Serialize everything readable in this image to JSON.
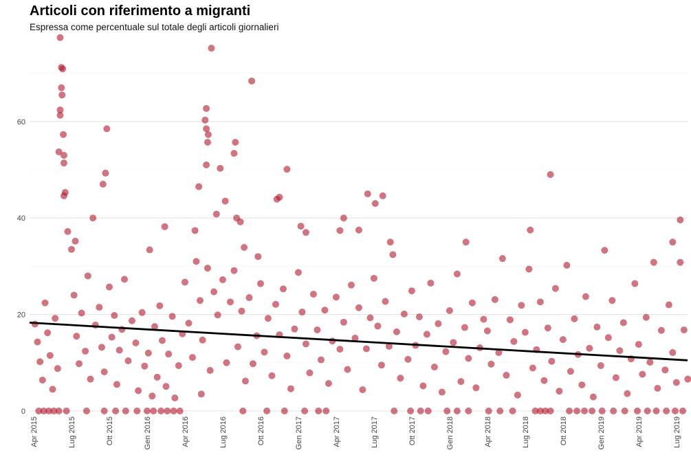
{
  "chart_data": {
    "type": "scatter",
    "title": "Articoli con riferimento a migranti",
    "subtitle": "Espressa come percentuale sul totale degli articoli giornalieri",
    "xlabel": "",
    "ylabel": "",
    "x_units": "months since Apr 2015",
    "xlim": [
      0,
      52
    ],
    "ylim": [
      0,
      78
    ],
    "y_ticks": [
      0,
      20,
      40,
      60
    ],
    "x_ticks": [
      {
        "m": 0,
        "label": "Apr 2015"
      },
      {
        "m": 3,
        "label": "Lug 2015"
      },
      {
        "m": 6,
        "label": "Ott 2015"
      },
      {
        "m": 9,
        "label": "Gen 2016"
      },
      {
        "m": 12,
        "label": "Apr 2016"
      },
      {
        "m": 15,
        "label": "Lug 2016"
      },
      {
        "m": 18,
        "label": "Ott 2016"
      },
      {
        "m": 21,
        "label": "Gen 2017"
      },
      {
        "m": 24,
        "label": "Apr 2017"
      },
      {
        "m": 27,
        "label": "Lug 2017"
      },
      {
        "m": 30,
        "label": "Ott 2017"
      },
      {
        "m": 33,
        "label": "Gen 2018"
      },
      {
        "m": 36,
        "label": "Apr 2018"
      },
      {
        "m": 39,
        "label": "Lug 2018"
      },
      {
        "m": 42,
        "label": "Ott 2018"
      },
      {
        "m": 45,
        "label": "Gen 2019"
      },
      {
        "m": 48,
        "label": "Apr 2019"
      },
      {
        "m": 51,
        "label": "Lug 2019"
      }
    ],
    "grid": true,
    "point_color": "#b2182b",
    "trend_color": "#000000",
    "trend": {
      "x": [
        0,
        52
      ],
      "y": [
        18.3,
        10.5
      ]
    },
    "points": [
      [
        2.1,
        77.4
      ],
      [
        2.2,
        71.2
      ],
      [
        2.3,
        70.9
      ],
      [
        2.2,
        67
      ],
      [
        2.25,
        65.5
      ],
      [
        2.1,
        62.4
      ],
      [
        2.1,
        61.3
      ],
      [
        2.35,
        57.3
      ],
      [
        2.4,
        53
      ],
      [
        2.0,
        53.7
      ],
      [
        2.4,
        51.4
      ],
      [
        2.5,
        45.3
      ],
      [
        2.4,
        44.6
      ],
      [
        5.8,
        58.5
      ],
      [
        5.7,
        49.3
      ],
      [
        5.5,
        47
      ],
      [
        14.1,
        75.2
      ],
      [
        13.7,
        62.7
      ],
      [
        13.6,
        60.3
      ],
      [
        13.7,
        58.5
      ],
      [
        13.85,
        57.3
      ],
      [
        13.8,
        55.7
      ],
      [
        13.7,
        51
      ],
      [
        16,
        55.7
      ],
      [
        15.9,
        53.4
      ],
      [
        17.3,
        68.4
      ],
      [
        14.8,
        50.3
      ],
      [
        20.1,
        50.1
      ],
      [
        19.5,
        44.3
      ],
      [
        19.3,
        43.9
      ],
      [
        26.5,
        45
      ],
      [
        27.7,
        44.6
      ],
      [
        27.1,
        43
      ],
      [
        41,
        49
      ],
      [
        51.3,
        39.6
      ],
      [
        50.7,
        35
      ],
      [
        51.3,
        30.8
      ],
      [
        4.7,
        40
      ],
      [
        10.4,
        38.2
      ],
      [
        24.6,
        40
      ],
      [
        13.1,
        46.5
      ],
      [
        15.2,
        43.5
      ],
      [
        16.1,
        40
      ],
      [
        14.5,
        40.8
      ],
      [
        12.8,
        37.4
      ],
      [
        16.4,
        39.2
      ],
      [
        21.6,
        37
      ],
      [
        21.2,
        38.3
      ],
      [
        24.3,
        37.4
      ],
      [
        39.4,
        37.5
      ],
      [
        9.2,
        33.4
      ],
      [
        3.0,
        33.5
      ],
      [
        3.3,
        35.2
      ],
      [
        2.7,
        37.2
      ],
      [
        16.7,
        33.9
      ],
      [
        25.8,
        37.5
      ],
      [
        28.3,
        35
      ],
      [
        34.3,
        35
      ],
      [
        17.8,
        32
      ],
      [
        0.1,
        18
      ],
      [
        0.3,
        14.3
      ],
      [
        0.5,
        10.2
      ],
      [
        0.7,
        6.4
      ],
      [
        0.9,
        22.4
      ],
      [
        1.1,
        16.2
      ],
      [
        1.3,
        11.5
      ],
      [
        1.5,
        4.5
      ],
      [
        1.7,
        19.2
      ],
      [
        1.9,
        8.8
      ],
      [
        0.4,
        0
      ],
      [
        0.8,
        0
      ],
      [
        1.2,
        0
      ],
      [
        1.6,
        0
      ],
      [
        2.0,
        0
      ],
      [
        2.6,
        0
      ],
      [
        3.2,
        24
      ],
      [
        3.4,
        15.5
      ],
      [
        3.6,
        9.8
      ],
      [
        3.8,
        20.3
      ],
      [
        4.1,
        12.4
      ],
      [
        4.3,
        28
      ],
      [
        4.5,
        6.6
      ],
      [
        4.9,
        17.8
      ],
      [
        4.2,
        0
      ],
      [
        5.6,
        0
      ],
      [
        5.2,
        21.5
      ],
      [
        5.4,
        13.2
      ],
      [
        5.6,
        8.1
      ],
      [
        6.0,
        25.7
      ],
      [
        6.2,
        15.3
      ],
      [
        6.4,
        19.8
      ],
      [
        6.6,
        5.5
      ],
      [
        6.8,
        12.6
      ],
      [
        7.0,
        16.9
      ],
      [
        7.2,
        27.3
      ],
      [
        6.5,
        0
      ],
      [
        7.3,
        0
      ],
      [
        7.5,
        10.4
      ],
      [
        7.8,
        18.7
      ],
      [
        8.1,
        14.1
      ],
      [
        8.3,
        4.2
      ],
      [
        8.6,
        20.4
      ],
      [
        8.8,
        9.3
      ],
      [
        9.1,
        12
      ],
      [
        9.4,
        3.1
      ],
      [
        9.6,
        17.5
      ],
      [
        9.8,
        7
      ],
      [
        8.2,
        0
      ],
      [
        9.0,
        0
      ],
      [
        9.5,
        0
      ],
      [
        10.0,
        21.8
      ],
      [
        10.2,
        14.6
      ],
      [
        10.5,
        5.1
      ],
      [
        10.7,
        11.8
      ],
      [
        11.0,
        19.6
      ],
      [
        11.2,
        2.7
      ],
      [
        11.5,
        9.4
      ],
      [
        11.8,
        16
      ],
      [
        10.1,
        0
      ],
      [
        10.6,
        0
      ],
      [
        11.1,
        0
      ],
      [
        11.6,
        0
      ],
      [
        12.0,
        26.7
      ],
      [
        12.3,
        18.2
      ],
      [
        12.6,
        11.1
      ],
      [
        12.9,
        31
      ],
      [
        13.2,
        22.9
      ],
      [
        13.4,
        14.7
      ],
      [
        13.8,
        29.6
      ],
      [
        14.0,
        8.4
      ],
      [
        14.3,
        24.7
      ],
      [
        14.6,
        19.9
      ],
      [
        13.3,
        3.5
      ],
      [
        15.0,
        27.2
      ],
      [
        15.3,
        10
      ],
      [
        15.6,
        22.6
      ],
      [
        15.9,
        29.1
      ],
      [
        16.2,
        13.3
      ],
      [
        16.5,
        20.7
      ],
      [
        16.8,
        6.2
      ],
      [
        17.1,
        23.5
      ],
      [
        17.4,
        9.8
      ],
      [
        17.7,
        15.6
      ],
      [
        16.6,
        0
      ],
      [
        18.0,
        26.4
      ],
      [
        18.3,
        12.2
      ],
      [
        18.6,
        19.2
      ],
      [
        18.9,
        7.3
      ],
      [
        19.2,
        22.1
      ],
      [
        19.5,
        15.8
      ],
      [
        19.8,
        25.3
      ],
      [
        20.1,
        11.4
      ],
      [
        20.4,
        4.6
      ],
      [
        20.7,
        17
      ],
      [
        18.5,
        0
      ],
      [
        19.9,
        0
      ],
      [
        21.0,
        28.7
      ],
      [
        21.3,
        20.5
      ],
      [
        21.6,
        13.9
      ],
      [
        21.9,
        7.9
      ],
      [
        22.2,
        24.2
      ],
      [
        22.5,
        16.8
      ],
      [
        22.8,
        10.6
      ],
      [
        23.1,
        20.9
      ],
      [
        23.4,
        5.7
      ],
      [
        23.7,
        14.5
      ],
      [
        21.5,
        0
      ],
      [
        22.6,
        0
      ],
      [
        24.0,
        23.6
      ],
      [
        24.3,
        12.8
      ],
      [
        24.6,
        18.4
      ],
      [
        24.9,
        8.6
      ],
      [
        25.2,
        26.1
      ],
      [
        25.5,
        15.1
      ],
      [
        25.8,
        21.4
      ],
      [
        26.1,
        4.4
      ],
      [
        26.4,
        12.9
      ],
      [
        26.7,
        19.3
      ],
      [
        23.2,
        0
      ],
      [
        27.0,
        27.5
      ],
      [
        27.3,
        17.6
      ],
      [
        27.6,
        9.5
      ],
      [
        27.9,
        22.7
      ],
      [
        28.2,
        13.4
      ],
      [
        28.5,
        32.4
      ],
      [
        28.8,
        16.4
      ],
      [
        29.1,
        6.8
      ],
      [
        29.4,
        20.1
      ],
      [
        29.7,
        10.7
      ],
      [
        28.6,
        0
      ],
      [
        30.0,
        24.9
      ],
      [
        30.3,
        13.6
      ],
      [
        30.6,
        19.5
      ],
      [
        30.9,
        5.2
      ],
      [
        31.2,
        15.9
      ],
      [
        31.5,
        26.5
      ],
      [
        31.8,
        9.1
      ],
      [
        32.1,
        18.1
      ],
      [
        32.4,
        3.9
      ],
      [
        32.7,
        12.3
      ],
      [
        29.9,
        0
      ],
      [
        30.7,
        0
      ],
      [
        31.3,
        0
      ],
      [
        33.0,
        20.8
      ],
      [
        33.3,
        14.2
      ],
      [
        33.6,
        28.4
      ],
      [
        33.9,
        6.1
      ],
      [
        34.2,
        17.3
      ],
      [
        34.5,
        10.9
      ],
      [
        34.8,
        22.4
      ],
      [
        35.1,
        4.8
      ],
      [
        35.4,
        13.1
      ],
      [
        35.7,
        19
      ],
      [
        32.8,
        0
      ],
      [
        33.6,
        0
      ],
      [
        34.5,
        0
      ],
      [
        36.0,
        16.6
      ],
      [
        36.3,
        9.7
      ],
      [
        36.6,
        23.1
      ],
      [
        36.9,
        12.1
      ],
      [
        37.2,
        31.6
      ],
      [
        37.5,
        7.4
      ],
      [
        37.8,
        18.9
      ],
      [
        38.1,
        14.4
      ],
      [
        38.4,
        3.3
      ],
      [
        38.7,
        21.9
      ],
      [
        36.1,
        0
      ],
      [
        37.0,
        0
      ],
      [
        38.0,
        0
      ],
      [
        39.0,
        16.3
      ],
      [
        39.3,
        29.4
      ],
      [
        39.6,
        8.9
      ],
      [
        39.9,
        12.7
      ],
      [
        40.2,
        22.6
      ],
      [
        40.5,
        6.3
      ],
      [
        40.8,
        17.2
      ],
      [
        41.1,
        10.3
      ],
      [
        41.4,
        25.4
      ],
      [
        41.7,
        4.1
      ],
      [
        39.8,
        0
      ],
      [
        40.2,
        0
      ],
      [
        40.6,
        0
      ],
      [
        41.0,
        0
      ],
      [
        42.0,
        14.8
      ],
      [
        42.3,
        30.2
      ],
      [
        42.6,
        8.2
      ],
      [
        42.9,
        19.1
      ],
      [
        43.2,
        11.7
      ],
      [
        43.5,
        5.4
      ],
      [
        43.8,
        23.7
      ],
      [
        44.1,
        13
      ],
      [
        44.4,
        2.9
      ],
      [
        44.7,
        17.4
      ],
      [
        42.5,
        0
      ],
      [
        43.1,
        0
      ],
      [
        43.7,
        0
      ],
      [
        44.3,
        0
      ],
      [
        45.0,
        9.4
      ],
      [
        45.3,
        33.3
      ],
      [
        45.6,
        15.2
      ],
      [
        45.9,
        22.9
      ],
      [
        46.2,
        6.9
      ],
      [
        46.5,
        12.5
      ],
      [
        46.8,
        18.3
      ],
      [
        47.1,
        3.6
      ],
      [
        47.4,
        10.8
      ],
      [
        47.7,
        26.4
      ],
      [
        45.1,
        0
      ],
      [
        46.0,
        0
      ],
      [
        46.9,
        0
      ],
      [
        48.0,
        13.8
      ],
      [
        48.3,
        7.6
      ],
      [
        48.6,
        19.4
      ],
      [
        48.9,
        10.1
      ],
      [
        49.2,
        30.8
      ],
      [
        49.5,
        4.7
      ],
      [
        49.8,
        16.7
      ],
      [
        50.1,
        8.5
      ],
      [
        50.4,
        22
      ],
      [
        50.7,
        12.1
      ],
      [
        51.0,
        5.9
      ],
      [
        51.6,
        16.8
      ],
      [
        51.9,
        6.6
      ],
      [
        47.9,
        0
      ],
      [
        48.7,
        0
      ],
      [
        49.4,
        0
      ],
      [
        50.2,
        0
      ],
      [
        50.9,
        0
      ],
      [
        51.5,
        0
      ]
    ]
  }
}
